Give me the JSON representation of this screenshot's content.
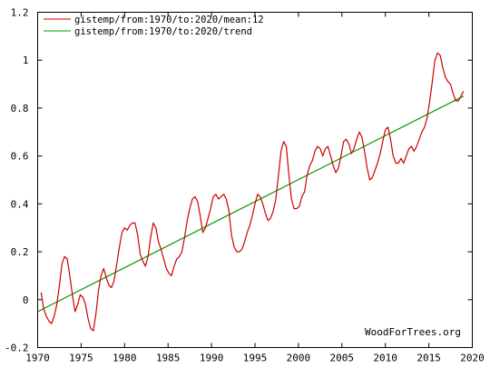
{
  "chart_data": {
    "type": "line",
    "xlim": [
      1970,
      2020
    ],
    "ylim": [
      -0.2,
      1.2
    ],
    "x_ticks": [
      1970,
      1975,
      1980,
      1985,
      1990,
      1995,
      2000,
      2005,
      2010,
      2015,
      2020
    ],
    "y_ticks": [
      -0.2,
      0,
      0.2,
      0.4,
      0.6,
      0.8,
      1,
      1.2
    ],
    "x_tick_labels": [
      "1970",
      "1975",
      "1980",
      "1985",
      "1990",
      "1995",
      "2000",
      "2005",
      "2010",
      "2015",
      "2020"
    ],
    "y_tick_labels": [
      "-0.2",
      "0",
      "0.2",
      "0.4",
      "0.6",
      "0.8",
      "1",
      "1.2"
    ],
    "grid": false,
    "legend_position": "top-left",
    "credit": "WoodForTrees.org",
    "series": [
      {
        "name": "gistemp/from:1970/to:2020/mean:12",
        "color": "#cc0000",
        "points": [
          [
            1970.4,
            0.03
          ],
          [
            1970.7,
            -0.04
          ],
          [
            1971.0,
            -0.07
          ],
          [
            1971.3,
            -0.09
          ],
          [
            1971.6,
            -0.1
          ],
          [
            1971.9,
            -0.07
          ],
          [
            1972.2,
            -0.02
          ],
          [
            1972.5,
            0.06
          ],
          [
            1972.8,
            0.15
          ],
          [
            1973.1,
            0.18
          ],
          [
            1973.4,
            0.17
          ],
          [
            1973.7,
            0.1
          ],
          [
            1974.0,
            0.02
          ],
          [
            1974.3,
            -0.05
          ],
          [
            1974.6,
            -0.02
          ],
          [
            1974.9,
            0.02
          ],
          [
            1975.2,
            0.01
          ],
          [
            1975.5,
            -0.02
          ],
          [
            1975.8,
            -0.08
          ],
          [
            1976.1,
            -0.12
          ],
          [
            1976.4,
            -0.13
          ],
          [
            1976.7,
            -0.06
          ],
          [
            1977.0,
            0.04
          ],
          [
            1977.3,
            0.1
          ],
          [
            1977.6,
            0.13
          ],
          [
            1977.9,
            0.09
          ],
          [
            1978.2,
            0.06
          ],
          [
            1978.5,
            0.05
          ],
          [
            1978.8,
            0.08
          ],
          [
            1979.1,
            0.15
          ],
          [
            1979.4,
            0.22
          ],
          [
            1979.7,
            0.28
          ],
          [
            1980.0,
            0.3
          ],
          [
            1980.3,
            0.29
          ],
          [
            1980.6,
            0.31
          ],
          [
            1980.9,
            0.32
          ],
          [
            1981.2,
            0.32
          ],
          [
            1981.5,
            0.27
          ],
          [
            1981.8,
            0.19
          ],
          [
            1982.1,
            0.16
          ],
          [
            1982.4,
            0.14
          ],
          [
            1982.7,
            0.18
          ],
          [
            1983.0,
            0.26
          ],
          [
            1983.3,
            0.32
          ],
          [
            1983.6,
            0.3
          ],
          [
            1983.9,
            0.24
          ],
          [
            1984.2,
            0.21
          ],
          [
            1984.5,
            0.17
          ],
          [
            1984.8,
            0.13
          ],
          [
            1985.1,
            0.11
          ],
          [
            1985.4,
            0.1
          ],
          [
            1985.7,
            0.14
          ],
          [
            1986.0,
            0.17
          ],
          [
            1986.3,
            0.18
          ],
          [
            1986.6,
            0.2
          ],
          [
            1986.9,
            0.26
          ],
          [
            1987.2,
            0.33
          ],
          [
            1987.5,
            0.38
          ],
          [
            1987.8,
            0.42
          ],
          [
            1988.1,
            0.43
          ],
          [
            1988.4,
            0.41
          ],
          [
            1988.7,
            0.35
          ],
          [
            1989.0,
            0.28
          ],
          [
            1989.3,
            0.3
          ],
          [
            1989.6,
            0.34
          ],
          [
            1989.9,
            0.38
          ],
          [
            1990.2,
            0.43
          ],
          [
            1990.5,
            0.44
          ],
          [
            1990.8,
            0.42
          ],
          [
            1991.1,
            0.43
          ],
          [
            1991.4,
            0.44
          ],
          [
            1991.7,
            0.42
          ],
          [
            1992.0,
            0.37
          ],
          [
            1992.3,
            0.27
          ],
          [
            1992.6,
            0.22
          ],
          [
            1992.9,
            0.2
          ],
          [
            1993.2,
            0.2
          ],
          [
            1993.5,
            0.21
          ],
          [
            1993.8,
            0.24
          ],
          [
            1994.1,
            0.28
          ],
          [
            1994.4,
            0.31
          ],
          [
            1994.7,
            0.35
          ],
          [
            1995.0,
            0.4
          ],
          [
            1995.3,
            0.44
          ],
          [
            1995.6,
            0.43
          ],
          [
            1995.9,
            0.4
          ],
          [
            1996.2,
            0.36
          ],
          [
            1996.5,
            0.33
          ],
          [
            1996.8,
            0.34
          ],
          [
            1997.1,
            0.37
          ],
          [
            1997.4,
            0.42
          ],
          [
            1997.7,
            0.52
          ],
          [
            1998.0,
            0.62
          ],
          [
            1998.3,
            0.66
          ],
          [
            1998.6,
            0.64
          ],
          [
            1998.9,
            0.52
          ],
          [
            1999.2,
            0.42
          ],
          [
            1999.5,
            0.38
          ],
          [
            1999.8,
            0.38
          ],
          [
            2000.1,
            0.39
          ],
          [
            2000.4,
            0.43
          ],
          [
            2000.7,
            0.45
          ],
          [
            2001.0,
            0.52
          ],
          [
            2001.3,
            0.56
          ],
          [
            2001.6,
            0.58
          ],
          [
            2001.9,
            0.62
          ],
          [
            2002.2,
            0.64
          ],
          [
            2002.5,
            0.63
          ],
          [
            2002.8,
            0.6
          ],
          [
            2003.1,
            0.63
          ],
          [
            2003.4,
            0.64
          ],
          [
            2003.7,
            0.6
          ],
          [
            2004.0,
            0.56
          ],
          [
            2004.3,
            0.53
          ],
          [
            2004.6,
            0.55
          ],
          [
            2004.9,
            0.6
          ],
          [
            2005.2,
            0.66
          ],
          [
            2005.5,
            0.67
          ],
          [
            2005.8,
            0.65
          ],
          [
            2006.1,
            0.61
          ],
          [
            2006.4,
            0.63
          ],
          [
            2006.7,
            0.67
          ],
          [
            2007.0,
            0.7
          ],
          [
            2007.3,
            0.68
          ],
          [
            2007.6,
            0.62
          ],
          [
            2007.9,
            0.55
          ],
          [
            2008.2,
            0.5
          ],
          [
            2008.5,
            0.51
          ],
          [
            2008.8,
            0.54
          ],
          [
            2009.1,
            0.57
          ],
          [
            2009.4,
            0.61
          ],
          [
            2009.7,
            0.66
          ],
          [
            2010.0,
            0.71
          ],
          [
            2010.3,
            0.72
          ],
          [
            2010.6,
            0.67
          ],
          [
            2010.9,
            0.6
          ],
          [
            2011.2,
            0.57
          ],
          [
            2011.5,
            0.57
          ],
          [
            2011.8,
            0.59
          ],
          [
            2012.1,
            0.57
          ],
          [
            2012.4,
            0.6
          ],
          [
            2012.7,
            0.63
          ],
          [
            2013.0,
            0.64
          ],
          [
            2013.3,
            0.62
          ],
          [
            2013.6,
            0.64
          ],
          [
            2013.9,
            0.67
          ],
          [
            2014.2,
            0.7
          ],
          [
            2014.5,
            0.72
          ],
          [
            2014.8,
            0.76
          ],
          [
            2015.1,
            0.83
          ],
          [
            2015.4,
            0.91
          ],
          [
            2015.7,
            1.0
          ],
          [
            2016.0,
            1.03
          ],
          [
            2016.3,
            1.02
          ],
          [
            2016.6,
            0.97
          ],
          [
            2016.9,
            0.93
          ],
          [
            2017.2,
            0.91
          ],
          [
            2017.5,
            0.9
          ],
          [
            2017.8,
            0.86
          ],
          [
            2018.1,
            0.83
          ],
          [
            2018.4,
            0.83
          ],
          [
            2018.7,
            0.85
          ],
          [
            2019.0,
            0.87
          ]
        ]
      },
      {
        "name": "gistemp/from:1970/to:2020/trend",
        "color": "#009900",
        "points": [
          [
            1970.0,
            -0.05
          ],
          [
            2019.0,
            0.85
          ]
        ]
      }
    ]
  }
}
